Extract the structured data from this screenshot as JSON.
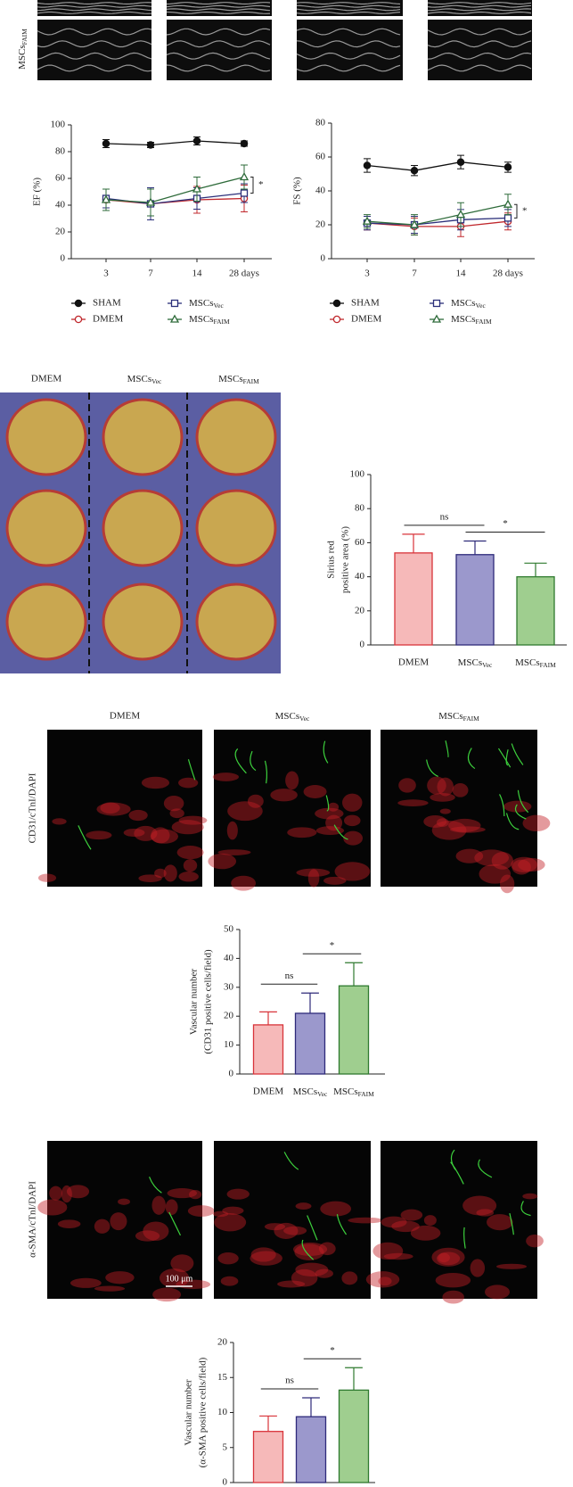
{
  "images": {
    "echo_label": "MSCsFAIM",
    "histology_headers": [
      "DMEM",
      "MSCsVec",
      "MSCsFAIM"
    ],
    "if_headers": [
      "DMEM",
      "MSCsVec",
      "MSCsFAIM"
    ],
    "if_row_labels": [
      "CD31/cTnI/DAPI",
      "α-SMA/cTnI/DAPI"
    ],
    "scale_bar": "100 μm"
  },
  "chart_data": [
    {
      "type": "line",
      "y_label": "EF (%)",
      "categories": [
        "3",
        "7",
        "14",
        "28 days"
      ],
      "ylim": [
        0,
        100
      ],
      "yticks": [
        0,
        20,
        40,
        60,
        80,
        100
      ],
      "annotations": [
        "*"
      ],
      "series": [
        {
          "name": "SHAM",
          "color": "#111111",
          "marker": "circle-filled",
          "values": [
            86,
            85,
            88,
            86
          ],
          "errors": [
            3,
            2,
            3,
            2
          ]
        },
        {
          "name": "DMEM",
          "color": "#c0282d",
          "marker": "circle-open",
          "values": [
            44,
            41,
            44,
            45
          ],
          "errors": [
            8,
            12,
            10,
            10
          ]
        },
        {
          "name": "MSCsVec",
          "color": "#2b2f7a",
          "marker": "square-open",
          "values": [
            45,
            41,
            45,
            49
          ],
          "errors": [
            7,
            12,
            8,
            7
          ]
        },
        {
          "name": "MSCsFAIM",
          "color": "#2e6b3a",
          "marker": "triangle-open",
          "values": [
            44,
            42,
            52,
            61
          ],
          "errors": [
            8,
            10,
            9,
            9
          ]
        }
      ]
    },
    {
      "type": "line",
      "y_label": "FS (%)",
      "categories": [
        "3",
        "7",
        "14",
        "28 days"
      ],
      "ylim": [
        0,
        80
      ],
      "yticks": [
        0,
        20,
        40,
        60,
        80
      ],
      "annotations": [
        "*"
      ],
      "series": [
        {
          "name": "SHAM",
          "color": "#111111",
          "marker": "circle-filled",
          "values": [
            55,
            52,
            57,
            54
          ],
          "errors": [
            4,
            3,
            4,
            3
          ]
        },
        {
          "name": "DMEM",
          "color": "#c0282d",
          "marker": "circle-open",
          "values": [
            21,
            19,
            19,
            22
          ],
          "errors": [
            4,
            5,
            6,
            5
          ]
        },
        {
          "name": "MSCsVec",
          "color": "#2b2f7a",
          "marker": "square-open",
          "values": [
            21,
            20,
            23,
            24
          ],
          "errors": [
            4,
            5,
            6,
            5
          ]
        },
        {
          "name": "MSCsFAIM",
          "color": "#2e6b3a",
          "marker": "triangle-open",
          "values": [
            22,
            20,
            26,
            32
          ],
          "errors": [
            4,
            6,
            7,
            6
          ]
        }
      ]
    },
    {
      "type": "bar",
      "y_label": [
        "Sirius red",
        "positive area (%)"
      ],
      "categories": [
        "DMEM",
        "MSCsVec",
        "MSCsFAIM"
      ],
      "values": [
        54,
        53,
        40
      ],
      "errors": [
        11,
        8,
        8
      ],
      "colors": [
        "#f6b9b9",
        "#9b98cc",
        "#9fce8f"
      ],
      "edge_colors": [
        "#d8343a",
        "#2e2a7a",
        "#2f7a2f"
      ],
      "ylim": [
        0,
        100
      ],
      "yticks": [
        0,
        20,
        40,
        60,
        80,
        100
      ],
      "annotations": [
        "ns",
        "*"
      ]
    },
    {
      "type": "bar",
      "y_label": [
        "Vascular number",
        "(CD31 positive cells/field)"
      ],
      "categories": [
        "DMEM",
        "MSCsVec",
        "MSCsFAIM"
      ],
      "values": [
        17,
        21,
        30.5
      ],
      "errors": [
        4.5,
        7,
        8
      ],
      "colors": [
        "#f6b9b9",
        "#9b98cc",
        "#9fce8f"
      ],
      "edge_colors": [
        "#d8343a",
        "#2e2a7a",
        "#2f7a2f"
      ],
      "ylim": [
        0,
        50
      ],
      "yticks": [
        0,
        10,
        20,
        30,
        40,
        50
      ],
      "annotations": [
        "ns",
        "*"
      ]
    },
    {
      "type": "bar",
      "y_label": [
        "Vascular number",
        "(α-SMA positive cells/field)"
      ],
      "values": [
        7.3,
        9.4,
        13.2
      ],
      "errors": [
        2.2,
        2.7,
        3.2
      ],
      "colors": [
        "#f6b9b9",
        "#9b98cc",
        "#9fce8f"
      ],
      "edge_colors": [
        "#d8343a",
        "#2e2a7a",
        "#2f7a2f"
      ],
      "ylim": [
        0,
        20
      ],
      "yticks": [
        0,
        5,
        10,
        15,
        20
      ],
      "annotations": [
        "ns",
        "*"
      ]
    }
  ]
}
